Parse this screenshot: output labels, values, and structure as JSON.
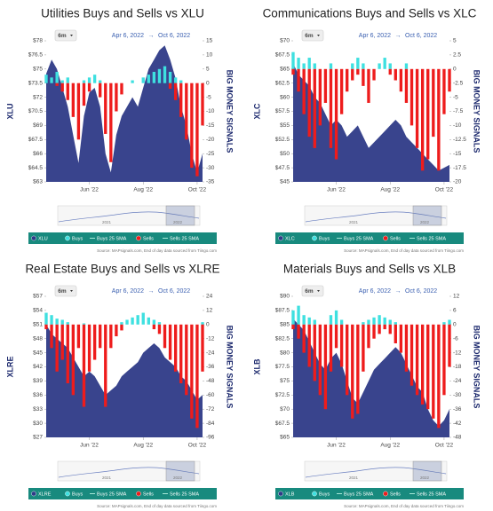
{
  "chart_data": [
    {
      "type": "combo",
      "title": "Utilities Buys and Sells vs XLU",
      "period": "6m",
      "range_start": "Apr 6, 2022",
      "arrow": "→",
      "range_end": "Oct 6, 2022",
      "y_label": "XLU",
      "y2_label": "BIG MONEY SIGNALS",
      "ylim": [
        63,
        78
      ],
      "yticks": [
        {
          "value": 78,
          "label": "$78"
        },
        {
          "value": 76.5,
          "label": "$76.5"
        },
        {
          "value": 75,
          "label": "$75"
        },
        {
          "value": 73.5,
          "label": "$73.5"
        },
        {
          "value": 72,
          "label": "$72"
        },
        {
          "value": 70.5,
          "label": "$70.5"
        },
        {
          "value": 69,
          "label": "$69"
        },
        {
          "value": 67.5,
          "label": "$67.5"
        },
        {
          "value": 66,
          "label": "$66"
        },
        {
          "value": 64.5,
          "label": "$64.5"
        },
        {
          "value": 63,
          "label": "$63"
        }
      ],
      "y2lim": [
        -35,
        15
      ],
      "y2ticks": [
        15,
        10,
        5,
        0,
        -5,
        -10,
        -15,
        -20,
        -25,
        -30,
        -35
      ],
      "xticks": [
        {
          "value": 8,
          "label": "Jun '22"
        },
        {
          "value": 18,
          "label": "Aug '22"
        },
        {
          "value": 28,
          "label": "Oct '22"
        }
      ],
      "series": [
        {
          "name": "XLU",
          "type": "area",
          "color": "#2e3a87",
          "values": [
            74.5,
            76,
            75,
            73,
            71,
            68,
            65,
            70,
            72.5,
            73,
            71,
            66,
            64,
            68,
            70,
            71,
            72,
            71,
            73,
            75,
            76,
            77,
            77.5,
            76,
            74,
            71,
            69,
            66,
            64,
            66
          ]
        },
        {
          "name": "Buys",
          "type": "bar",
          "axis": "y2",
          "color": "#3ee0e0",
          "values": [
            3,
            2,
            4,
            1,
            2,
            0,
            0,
            1,
            2,
            3,
            1,
            0,
            0,
            0,
            0,
            0,
            1,
            0,
            2,
            3,
            4,
            5,
            6,
            4,
            2,
            1,
            0,
            0,
            0,
            0
          ]
        },
        {
          "name": "Sells",
          "type": "bar",
          "axis": "y2",
          "color": "#ee1c1c",
          "values": [
            0,
            0,
            -1,
            -3,
            -6,
            -12,
            -20,
            -8,
            -3,
            0,
            -5,
            -18,
            -28,
            -10,
            -4,
            0,
            0,
            0,
            0,
            0,
            0,
            0,
            0,
            -2,
            -6,
            -12,
            -20,
            -30,
            -33,
            -15
          ]
        }
      ],
      "legend_extra": [
        "Buys 25 SMA",
        "Sells 25 SMA"
      ],
      "nav_labels": [
        "2021",
        "2022"
      ],
      "source": "Source: MAPsignals.com, End of day data sourced from Tiingo.com"
    },
    {
      "type": "combo",
      "title": "Communications Buys and Sells vs XLC",
      "period": "6m",
      "range_start": "Apr 6, 2022",
      "arrow": "→",
      "range_end": "Oct 6, 2022",
      "y_label": "XLC",
      "y2_label": "BIG MONEY SIGNALS",
      "ylim": [
        45,
        70
      ],
      "yticks": [
        {
          "value": 70,
          "label": "$70"
        },
        {
          "value": 67.5,
          "label": "$67.5"
        },
        {
          "value": 65,
          "label": "$65"
        },
        {
          "value": 62.5,
          "label": "$62.5"
        },
        {
          "value": 60,
          "label": "$60"
        },
        {
          "value": 57.5,
          "label": "$57.5"
        },
        {
          "value": 55,
          "label": "$55"
        },
        {
          "value": 52.5,
          "label": "$52.5"
        },
        {
          "value": 50,
          "label": "$50"
        },
        {
          "value": 47.5,
          "label": "$47.5"
        },
        {
          "value": 45,
          "label": "$45"
        }
      ],
      "y2lim": [
        -20,
        5
      ],
      "y2ticks": [
        5,
        2.5,
        0,
        -2.5,
        -5,
        -7.5,
        -10,
        -12.5,
        -15,
        -17.5,
        -20
      ],
      "xticks": [
        {
          "value": 8,
          "label": "Jun '22"
        },
        {
          "value": 18,
          "label": "Aug '22"
        },
        {
          "value": 28,
          "label": "Oct '22"
        }
      ],
      "series": [
        {
          "name": "XLC",
          "type": "area",
          "color": "#2e3a87",
          "values": [
            66,
            64,
            63,
            62,
            60,
            59,
            57,
            55,
            56,
            55,
            53,
            54,
            55,
            53,
            51,
            52,
            53,
            54,
            55,
            56,
            55,
            53,
            52,
            51,
            50,
            49,
            48,
            47,
            47.5,
            48
          ]
        },
        {
          "name": "Buys",
          "type": "bar",
          "axis": "y2",
          "color": "#3ee0e0",
          "values": [
            3,
            2,
            1,
            2,
            1,
            0,
            0,
            1,
            0,
            0,
            0,
            1,
            2,
            1,
            0,
            0,
            1,
            2,
            1,
            0,
            0,
            1,
            0,
            0,
            0,
            0,
            0,
            0,
            0,
            0
          ]
        },
        {
          "name": "Sells",
          "type": "bar",
          "axis": "y2",
          "color": "#ee1c1c",
          "values": [
            -1,
            -4,
            -8,
            -12,
            -14,
            -10,
            -6,
            -14,
            -16,
            -8,
            -4,
            -2,
            -1,
            -3,
            -6,
            -2,
            0,
            0,
            -1,
            -2,
            -4,
            -6,
            -10,
            -14,
            -18,
            -16,
            -12,
            -18,
            -8,
            -4
          ]
        }
      ],
      "legend_extra": [
        "Buys 25 SMA",
        "Sells 25 SMA"
      ],
      "nav_labels": [
        "2021",
        "2022"
      ],
      "source": "Source: MAPsignals.com, End of day data sourced from Tiingo.com"
    },
    {
      "type": "combo",
      "title": "Real Estate Buys and Sells vs XLRE",
      "period": "6m",
      "range_start": "Apr 6, 2022",
      "arrow": "→",
      "range_end": "Oct 6, 2022",
      "y_label": "XLRE",
      "y2_label": "BIG MONEY SIGNALS",
      "ylim": [
        27,
        57
      ],
      "yticks": [
        {
          "value": 57,
          "label": "$57"
        },
        {
          "value": 54,
          "label": "$54"
        },
        {
          "value": 51,
          "label": "$51"
        },
        {
          "value": 48,
          "label": "$48"
        },
        {
          "value": 45,
          "label": "$45"
        },
        {
          "value": 42,
          "label": "$42"
        },
        {
          "value": 39,
          "label": "$39"
        },
        {
          "value": 36,
          "label": "$36"
        },
        {
          "value": 33,
          "label": "$33"
        },
        {
          "value": 30,
          "label": "$30"
        },
        {
          "value": 27,
          "label": "$27"
        }
      ],
      "y2lim": [
        -96,
        24
      ],
      "y2ticks": [
        24,
        12,
        0,
        -12,
        -24,
        -36,
        -48,
        -60,
        -72,
        -84,
        -96
      ],
      "xticks": [
        {
          "value": 8,
          "label": "Jun '22"
        },
        {
          "value": 18,
          "label": "Aug '22"
        },
        {
          "value": 28,
          "label": "Oct '22"
        }
      ],
      "series": [
        {
          "name": "XLRE",
          "type": "area",
          "color": "#2e3a87",
          "values": [
            51,
            49,
            48,
            47,
            46,
            44,
            42,
            40,
            41,
            40,
            38,
            36,
            37,
            38,
            40,
            41,
            42,
            43,
            45,
            46,
            47,
            46,
            44,
            43,
            42,
            40,
            39,
            37,
            35,
            36
          ]
        },
        {
          "name": "Buys",
          "type": "bar",
          "axis": "y2",
          "color": "#3ee0e0",
          "values": [
            10,
            8,
            5,
            4,
            2,
            0,
            0,
            1,
            0,
            0,
            0,
            0,
            0,
            0,
            2,
            4,
            6,
            8,
            10,
            6,
            4,
            2,
            0,
            0,
            0,
            0,
            0,
            0,
            0,
            2
          ]
        },
        {
          "name": "Sells",
          "type": "bar",
          "axis": "y2",
          "color": "#ee1c1c",
          "values": [
            -4,
            -20,
            -40,
            -30,
            -50,
            -60,
            -20,
            -70,
            -40,
            -30,
            -20,
            -70,
            -20,
            -10,
            -5,
            0,
            0,
            0,
            0,
            0,
            -4,
            -8,
            -20,
            -30,
            -40,
            -50,
            -60,
            -80,
            -88,
            -40
          ]
        }
      ],
      "legend_extra": [
        "Buys 25 SMA",
        "Sells 25 SMA"
      ],
      "nav_labels": [
        "2021",
        "2022"
      ],
      "source": "Source: MAPsignals.com, End of day data sourced from Tiingo.com"
    },
    {
      "type": "combo",
      "title": "Materials Buys and Sells vs XLB",
      "period": "6m",
      "range_start": "Apr 6, 2022",
      "arrow": "→",
      "range_end": "Oct 6, 2022",
      "y_label": "XLB",
      "y2_label": "BIG MONEY SIGNALS",
      "ylim": [
        65,
        90
      ],
      "yticks": [
        {
          "value": 90,
          "label": "$90"
        },
        {
          "value": 87.5,
          "label": "$87.5"
        },
        {
          "value": 85,
          "label": "$85"
        },
        {
          "value": 82.5,
          "label": "$82.5"
        },
        {
          "value": 80,
          "label": "$80"
        },
        {
          "value": 77.5,
          "label": "$77.5"
        },
        {
          "value": 75,
          "label": "$75"
        },
        {
          "value": 72.5,
          "label": "$72.5"
        },
        {
          "value": 70,
          "label": "$70"
        },
        {
          "value": 67.5,
          "label": "$67.5"
        },
        {
          "value": 65,
          "label": "$65"
        }
      ],
      "y2lim": [
        -48,
        12
      ],
      "y2ticks": [
        12,
        6,
        0,
        -6,
        -12,
        -18,
        -24,
        -30,
        -36,
        -42,
        -48
      ],
      "xticks": [
        {
          "value": 8,
          "label": "Jun '22"
        },
        {
          "value": 18,
          "label": "Aug '22"
        },
        {
          "value": 28,
          "label": "Oct '22"
        }
      ],
      "series": [
        {
          "name": "XLB",
          "type": "area",
          "color": "#2e3a87",
          "values": [
            86,
            85,
            84,
            82,
            80,
            78,
            77,
            79,
            80,
            78,
            75,
            72,
            71,
            73,
            75,
            77,
            78,
            79,
            80,
            81,
            80,
            78,
            76,
            74,
            73,
            70,
            68,
            67,
            68,
            70
          ]
        },
        {
          "name": "Buys",
          "type": "bar",
          "axis": "y2",
          "color": "#3ee0e0",
          "values": [
            6,
            8,
            4,
            3,
            2,
            0,
            0,
            4,
            6,
            2,
            0,
            0,
            0,
            1,
            2,
            3,
            4,
            3,
            2,
            1,
            0,
            0,
            0,
            0,
            0,
            0,
            0,
            0,
            1,
            2
          ]
        },
        {
          "name": "Sells",
          "type": "bar",
          "axis": "y2",
          "color": "#ee1c1c",
          "values": [
            -2,
            -6,
            -12,
            -18,
            -24,
            -30,
            -36,
            -20,
            -10,
            -18,
            -30,
            -40,
            -38,
            -20,
            -10,
            -6,
            -4,
            -2,
            -4,
            -8,
            -12,
            -20,
            -26,
            -30,
            -34,
            -36,
            -40,
            -44,
            -30,
            -18
          ]
        }
      ],
      "legend_extra": [
        "Buys 25 SMA",
        "Sells 25 SMA"
      ],
      "nav_labels": [
        "2021",
        "2022"
      ],
      "source": "Source: MAPsignals.com, End of day data sourced from Tiingo.com"
    }
  ]
}
